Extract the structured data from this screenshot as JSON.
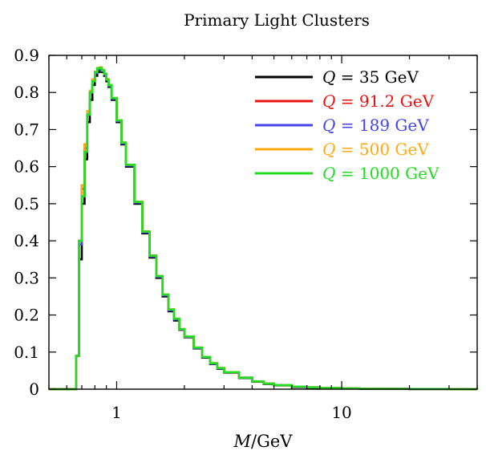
{
  "chart_data": {
    "type": "line",
    "title": "Primary Light Clusters",
    "xlabel": {
      "var": "M",
      "unit": "/GeV"
    },
    "ylabel": "",
    "xscale": "log",
    "xlim": [
      0.5,
      40
    ],
    "ylim": [
      0,
      0.9
    ],
    "x_ticks": [
      {
        "value": 1,
        "label": "1"
      },
      {
        "value": 10,
        "label": "10"
      }
    ],
    "y_ticks": [
      {
        "value": 0,
        "label": "0"
      },
      {
        "value": 0.1,
        "label": "0.1"
      },
      {
        "value": 0.2,
        "label": "0.2"
      },
      {
        "value": 0.3,
        "label": "0.3"
      },
      {
        "value": 0.4,
        "label": "0.4"
      },
      {
        "value": 0.5,
        "label": "0.5"
      },
      {
        "value": 0.6,
        "label": "0.6"
      },
      {
        "value": 0.7,
        "label": "0.7"
      },
      {
        "value": 0.8,
        "label": "0.8"
      },
      {
        "value": 0.9,
        "label": "0.9"
      }
    ],
    "legend_position": "top-right",
    "grid": false,
    "x": [
      0.5,
      0.64,
      0.66,
      0.68,
      0.7,
      0.72,
      0.74,
      0.76,
      0.78,
      0.8,
      0.82,
      0.84,
      0.86,
      0.88,
      0.9,
      0.92,
      0.95,
      1.0,
      1.05,
      1.1,
      1.2,
      1.3,
      1.4,
      1.5,
      1.6,
      1.7,
      1.8,
      1.9,
      2.0,
      2.2,
      2.4,
      2.6,
      2.8,
      3.0,
      3.5,
      4.0,
      4.5,
      5.0,
      6.0,
      7.0,
      8.0,
      10.0,
      12.0,
      15.0,
      20.0,
      30.0,
      40.0
    ],
    "series": [
      {
        "name": "Q = 35 GeV",
        "color": "#000000",
        "values": [
          0,
          0,
          0.09,
          0.35,
          0.5,
          0.62,
          0.72,
          0.78,
          0.82,
          0.845,
          0.855,
          0.862,
          0.855,
          0.845,
          0.83,
          0.815,
          0.78,
          0.72,
          0.66,
          0.6,
          0.5,
          0.42,
          0.355,
          0.3,
          0.25,
          0.21,
          0.185,
          0.16,
          0.14,
          0.11,
          0.085,
          0.068,
          0.055,
          0.045,
          0.03,
          0.02,
          0.014,
          0.01,
          0.006,
          0.004,
          0.003,
          0.002,
          0.001,
          0.0008,
          0.0005,
          0.0002,
          0
        ]
      },
      {
        "name": "Q = 91.2 GeV",
        "color": "#ee1111",
        "values": [
          0,
          0,
          0.09,
          0.4,
          0.55,
          0.66,
          0.75,
          0.8,
          0.835,
          0.855,
          0.865,
          0.865,
          0.86,
          0.85,
          0.835,
          0.82,
          0.785,
          0.725,
          0.665,
          0.605,
          0.505,
          0.425,
          0.36,
          0.305,
          0.255,
          0.215,
          0.19,
          0.162,
          0.142,
          0.112,
          0.087,
          0.07,
          0.057,
          0.046,
          0.031,
          0.021,
          0.015,
          0.011,
          0.007,
          0.005,
          0.003,
          0.002,
          0.001,
          0.0008,
          0.0005,
          0.0002,
          0
        ]
      },
      {
        "name": "Q = 189 GeV",
        "color": "#4444ee",
        "values": [
          0,
          0,
          0.09,
          0.39,
          0.54,
          0.65,
          0.74,
          0.8,
          0.832,
          0.852,
          0.862,
          0.865,
          0.858,
          0.848,
          0.834,
          0.818,
          0.783,
          0.723,
          0.663,
          0.603,
          0.503,
          0.423,
          0.358,
          0.303,
          0.253,
          0.213,
          0.188,
          0.161,
          0.141,
          0.111,
          0.086,
          0.069,
          0.056,
          0.046,
          0.031,
          0.021,
          0.015,
          0.011,
          0.007,
          0.005,
          0.003,
          0.002,
          0.001,
          0.0008,
          0.0005,
          0.0002,
          0
        ]
      },
      {
        "name": "Q = 500 GeV",
        "color": "#ffaa11",
        "values": [
          0,
          0,
          0.09,
          0.4,
          0.55,
          0.66,
          0.75,
          0.805,
          0.835,
          0.856,
          0.866,
          0.868,
          0.86,
          0.85,
          0.836,
          0.82,
          0.785,
          0.725,
          0.665,
          0.605,
          0.505,
          0.425,
          0.36,
          0.305,
          0.255,
          0.215,
          0.19,
          0.162,
          0.142,
          0.112,
          0.087,
          0.07,
          0.057,
          0.046,
          0.031,
          0.021,
          0.015,
          0.011,
          0.007,
          0.005,
          0.003,
          0.002,
          0.001,
          0.0008,
          0.0005,
          0.0002,
          0
        ]
      },
      {
        "name": "Q = 1000 GeV",
        "color": "#22dd22",
        "values": [
          0,
          0,
          0.09,
          0.4,
          0.52,
          0.64,
          0.74,
          0.8,
          0.83,
          0.855,
          0.865,
          0.866,
          0.86,
          0.85,
          0.835,
          0.82,
          0.785,
          0.725,
          0.665,
          0.605,
          0.505,
          0.425,
          0.36,
          0.305,
          0.255,
          0.215,
          0.19,
          0.162,
          0.142,
          0.112,
          0.087,
          0.07,
          0.057,
          0.046,
          0.031,
          0.021,
          0.015,
          0.011,
          0.007,
          0.005,
          0.003,
          0.002,
          0.001,
          0.0008,
          0.0005,
          0.0002,
          0
        ]
      }
    ],
    "legend": [
      {
        "lhs": "Q",
        "rhs": " = 35 GeV",
        "color": "#000000",
        "text_color": "#000000"
      },
      {
        "lhs": "Q",
        "rhs": " = 91.2 GeV",
        "color": "#ee1111",
        "text_color": "#ee1111"
      },
      {
        "lhs": "Q",
        "rhs": " = 189 GeV",
        "color": "#4444ee",
        "text_color": "#4444ee"
      },
      {
        "lhs": "Q",
        "rhs": " = 500 GeV",
        "color": "#ffaa11",
        "text_color": "#ffaa11"
      },
      {
        "lhs": "Q",
        "rhs": " = 1000 GeV",
        "color": "#22dd22",
        "text_color": "#22dd22"
      }
    ]
  }
}
